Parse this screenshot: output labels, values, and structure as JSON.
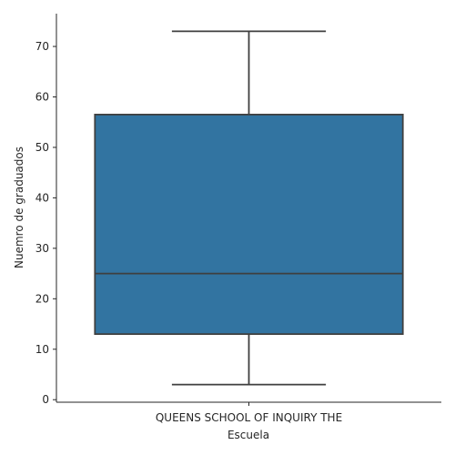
{
  "chart_data": {
    "type": "box",
    "xlabel": "Escuela",
    "ylabel": "Nuemro de graduados",
    "categories": [
      "QUEENS SCHOOL OF INQUIRY THE"
    ],
    "boxes": [
      {
        "category": "QUEENS SCHOOL OF INQUIRY THE",
        "whisker_low": 3,
        "q1": 13,
        "median": 25,
        "q3": 56.5,
        "whisker_high": 73
      }
    ],
    "ylim": [
      -0.5,
      76.5
    ],
    "yticks": [
      0,
      10,
      20,
      30,
      40,
      50,
      60,
      70
    ],
    "colors": {
      "box": "#3274a1",
      "line": "#3f3f3f",
      "axis": "#262626"
    },
    "grid": false
  }
}
